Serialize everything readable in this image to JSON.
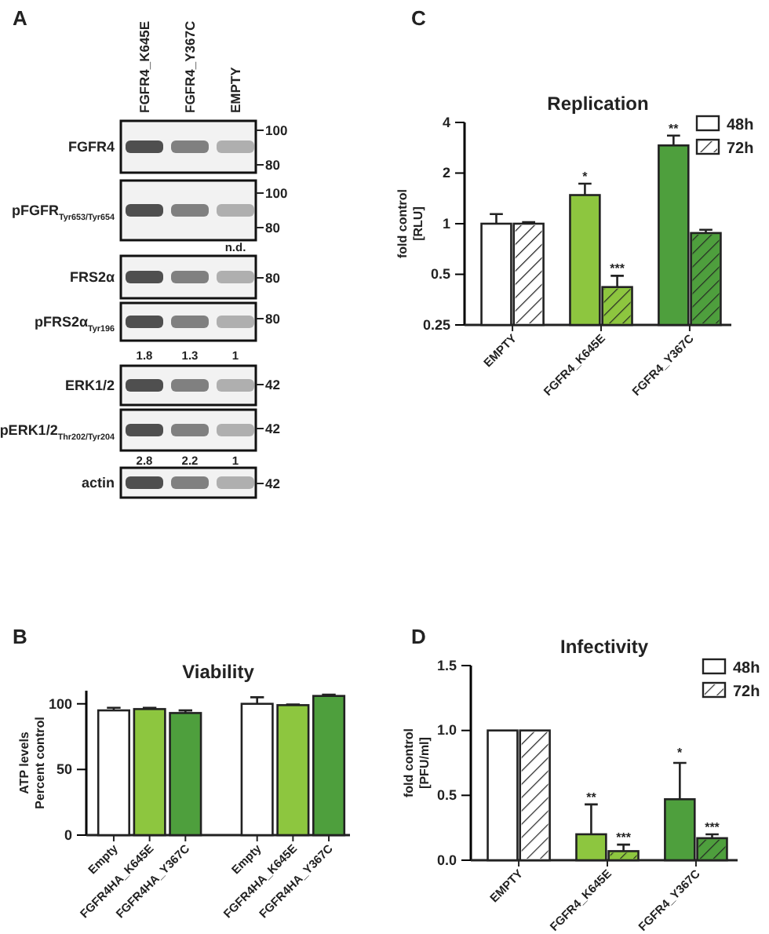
{
  "chart_data": [
    {
      "type": "other",
      "categories": [
        "FGFR4_K645E",
        "FGFR4_Y367C",
        "EMPTY"
      ],
      "annotations": [
        "A",
        "FGFR4",
        "pFGFR$_{Tyr653/Tyr654}$",
        "FRS2α",
        "pFRS2α$_{Tyr196}$",
        "ERK1/2",
        "pERK1/2$_{Thr202/Tyr204}$",
        "actin",
        "100",
        "80",
        "100",
        "80",
        "80",
        "80",
        "42",
        "42",
        "42",
        "n.d.",
        "1.8",
        "1.3",
        "1",
        "2.8",
        "2.2",
        "1"
      ]
    },
    {
      "type": "bar",
      "title": "Viability",
      "ylabel": "ATP levels\nPercent control",
      "annotations": [
        "B"
      ],
      "categories": [
        "Empty",
        "FGFR4HA_K645E",
        "FGFR4HA_Y367C",
        null,
        "Empty",
        "FGFR4HA_K645E",
        "FGFR4HA_Y367C"
      ],
      "values": [
        95,
        96,
        93,
        null,
        100,
        99,
        106
      ],
      "colors": [
        "#ffffff",
        "#8dc63f",
        "#4e9f3d",
        null,
        "#ffffff",
        "#8dc63f",
        "#4e9f3d"
      ],
      "errors": [
        2,
        1,
        2,
        null,
        5,
        0.5,
        1
      ],
      "ylim": [
        0,
        110
      ],
      "yticks": [
        0,
        50,
        100
      ]
    },
    {
      "type": "bar",
      "title": "Replication",
      "ylabel": "fold control\n[RLU]",
      "log": true,
      "ylim": [
        0.25,
        4
      ],
      "yticks": [
        0.25,
        0.5,
        1,
        2,
        4
      ],
      "legend": "top right",
      "categories": [
        "EMPTY",
        "FGFR4_K645E",
        "FGFR4_Y367C"
      ],
      "series": [
        {
          "name": "48h",
          "color": "#ffffff",
          "colors": [
            "#ffffff",
            "#8dc63f",
            "#4e9f3d"
          ],
          "values": [
            1.0,
            1.48,
            2.92
          ],
          "errors": [
            0.14,
            0.25,
            0.42
          ]
        },
        {
          "name": "72h",
          "color": "#ffffff",
          "colors": [
            "#ffffff",
            "#8dc63f",
            "#4e9f3d"
          ],
          "values": [
            1.0,
            0.42,
            0.88
          ],
          "errors": [
            0.02,
            0.07,
            0.04
          ]
        }
      ],
      "annotations": [
        "C",
        {
          "text": "*",
          "x": "FGFR4_K645E",
          "y": 1.48
        },
        {
          "text": "***",
          "x": "FGFR4_K645E",
          "y": 0.42
        },
        {
          "text": "**",
          "x": "FGFR4_Y367C",
          "y": 2.92
        }
      ]
    },
    {
      "type": "bar",
      "title": "Infectivity",
      "ylabel": "fold control\n[PFU/ml]",
      "ylim": [
        0,
        1.5
      ],
      "yticks": [
        {
          "value": 0,
          "label": "0.0"
        },
        {
          "value": 0.5,
          "label": "0.5"
        },
        {
          "value": 1,
          "label": "1.0"
        },
        {
          "value": 1.5,
          "label": "1.5"
        }
      ],
      "legend": "top right",
      "categories": [
        "EMPTY",
        "FGFR4_K645E",
        "FGFR4_Y367C"
      ],
      "series": [
        {
          "name": "48h",
          "color": "#ffffff",
          "colors": [
            "#ffffff",
            "#8dc63f",
            "#4e9f3d"
          ],
          "values": [
            1.0,
            0.2,
            0.47
          ],
          "errors": [
            null,
            0.23,
            0.28
          ]
        },
        {
          "name": "72h",
          "color": "#ffffff",
          "colors": [
            "#ffffff",
            "#8dc63f",
            "#4e9f3d"
          ],
          "values": [
            1.0,
            0.07,
            0.17
          ],
          "errors": [
            null,
            0.05,
            0.03
          ]
        }
      ],
      "annotations": [
        "D",
        {
          "text": "**",
          "x": "FGFR4_K645E",
          "y": 0.2
        },
        {
          "text": "***",
          "x": "FGFR4_K645E",
          "y": 0.07
        },
        "*",
        {
          "text": "***",
          "x": "FGFR4_Y367C",
          "y": 0.17
        }
      ]
    }
  ]
}
